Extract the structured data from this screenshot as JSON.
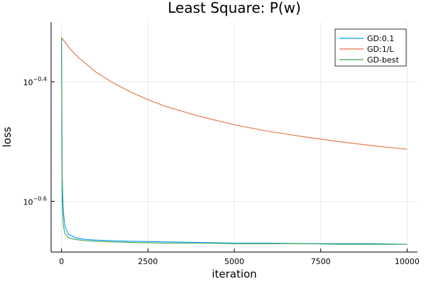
{
  "chart_data": {
    "type": "line",
    "title": "Least Square: P(w)",
    "xlabel": "iteration",
    "ylabel": "loss",
    "yscale": "log10",
    "xlim": [
      -300,
      10300
    ],
    "ylim_log10": [
      -0.685,
      -0.3
    ],
    "x_ticks": [
      0,
      2500,
      5000,
      7500,
      10000
    ],
    "x_tick_labels": [
      "0",
      "2500",
      "5000",
      "7500",
      "10000"
    ],
    "y_ticks_log10": [
      -0.4,
      -0.6
    ],
    "y_tick_labels": [
      {
        "base": "10",
        "exp": "−0.4"
      },
      {
        "base": "10",
        "exp": "−0.6"
      }
    ],
    "grid": true,
    "legend_position": "top-right",
    "series": [
      {
        "name": "GD:0.1",
        "color": "#009AFA",
        "x": [
          0,
          20,
          50,
          100,
          200,
          400,
          700,
          1000,
          1500,
          2000,
          3000,
          4000,
          5000,
          6000,
          7000,
          8000,
          9000,
          10000
        ],
        "log10_y": [
          -0.326,
          -0.56,
          -0.615,
          -0.642,
          -0.655,
          -0.661,
          -0.664,
          -0.665,
          -0.666,
          -0.667,
          -0.668,
          -0.669,
          -0.67,
          -0.67,
          -0.671,
          -0.671,
          -0.671,
          -0.672
        ]
      },
      {
        "name": "GD:1/L",
        "color": "#E26F46",
        "x": [
          0,
          250,
          500,
          1000,
          1500,
          2000,
          2500,
          3000,
          4000,
          5000,
          6000,
          7000,
          8000,
          9000,
          10000
        ],
        "log10_y": [
          -0.326,
          -0.345,
          -0.36,
          -0.384,
          -0.402,
          -0.417,
          -0.43,
          -0.441,
          -0.458,
          -0.472,
          -0.483,
          -0.492,
          -0.5,
          -0.507,
          -0.513
        ]
      },
      {
        "name": "GD-best",
        "color": "#3EA44E",
        "x": [
          0,
          20,
          50,
          100,
          200,
          400,
          700,
          1000,
          1500,
          2000,
          3000,
          4000,
          5000,
          6000,
          7000,
          8000,
          9000,
          10000
        ],
        "log10_y": [
          -0.326,
          -0.6,
          -0.64,
          -0.654,
          -0.661,
          -0.664,
          -0.666,
          -0.667,
          -0.668,
          -0.669,
          -0.67,
          -0.67,
          -0.671,
          -0.671,
          -0.671,
          -0.672,
          -0.672,
          -0.672
        ]
      }
    ]
  }
}
